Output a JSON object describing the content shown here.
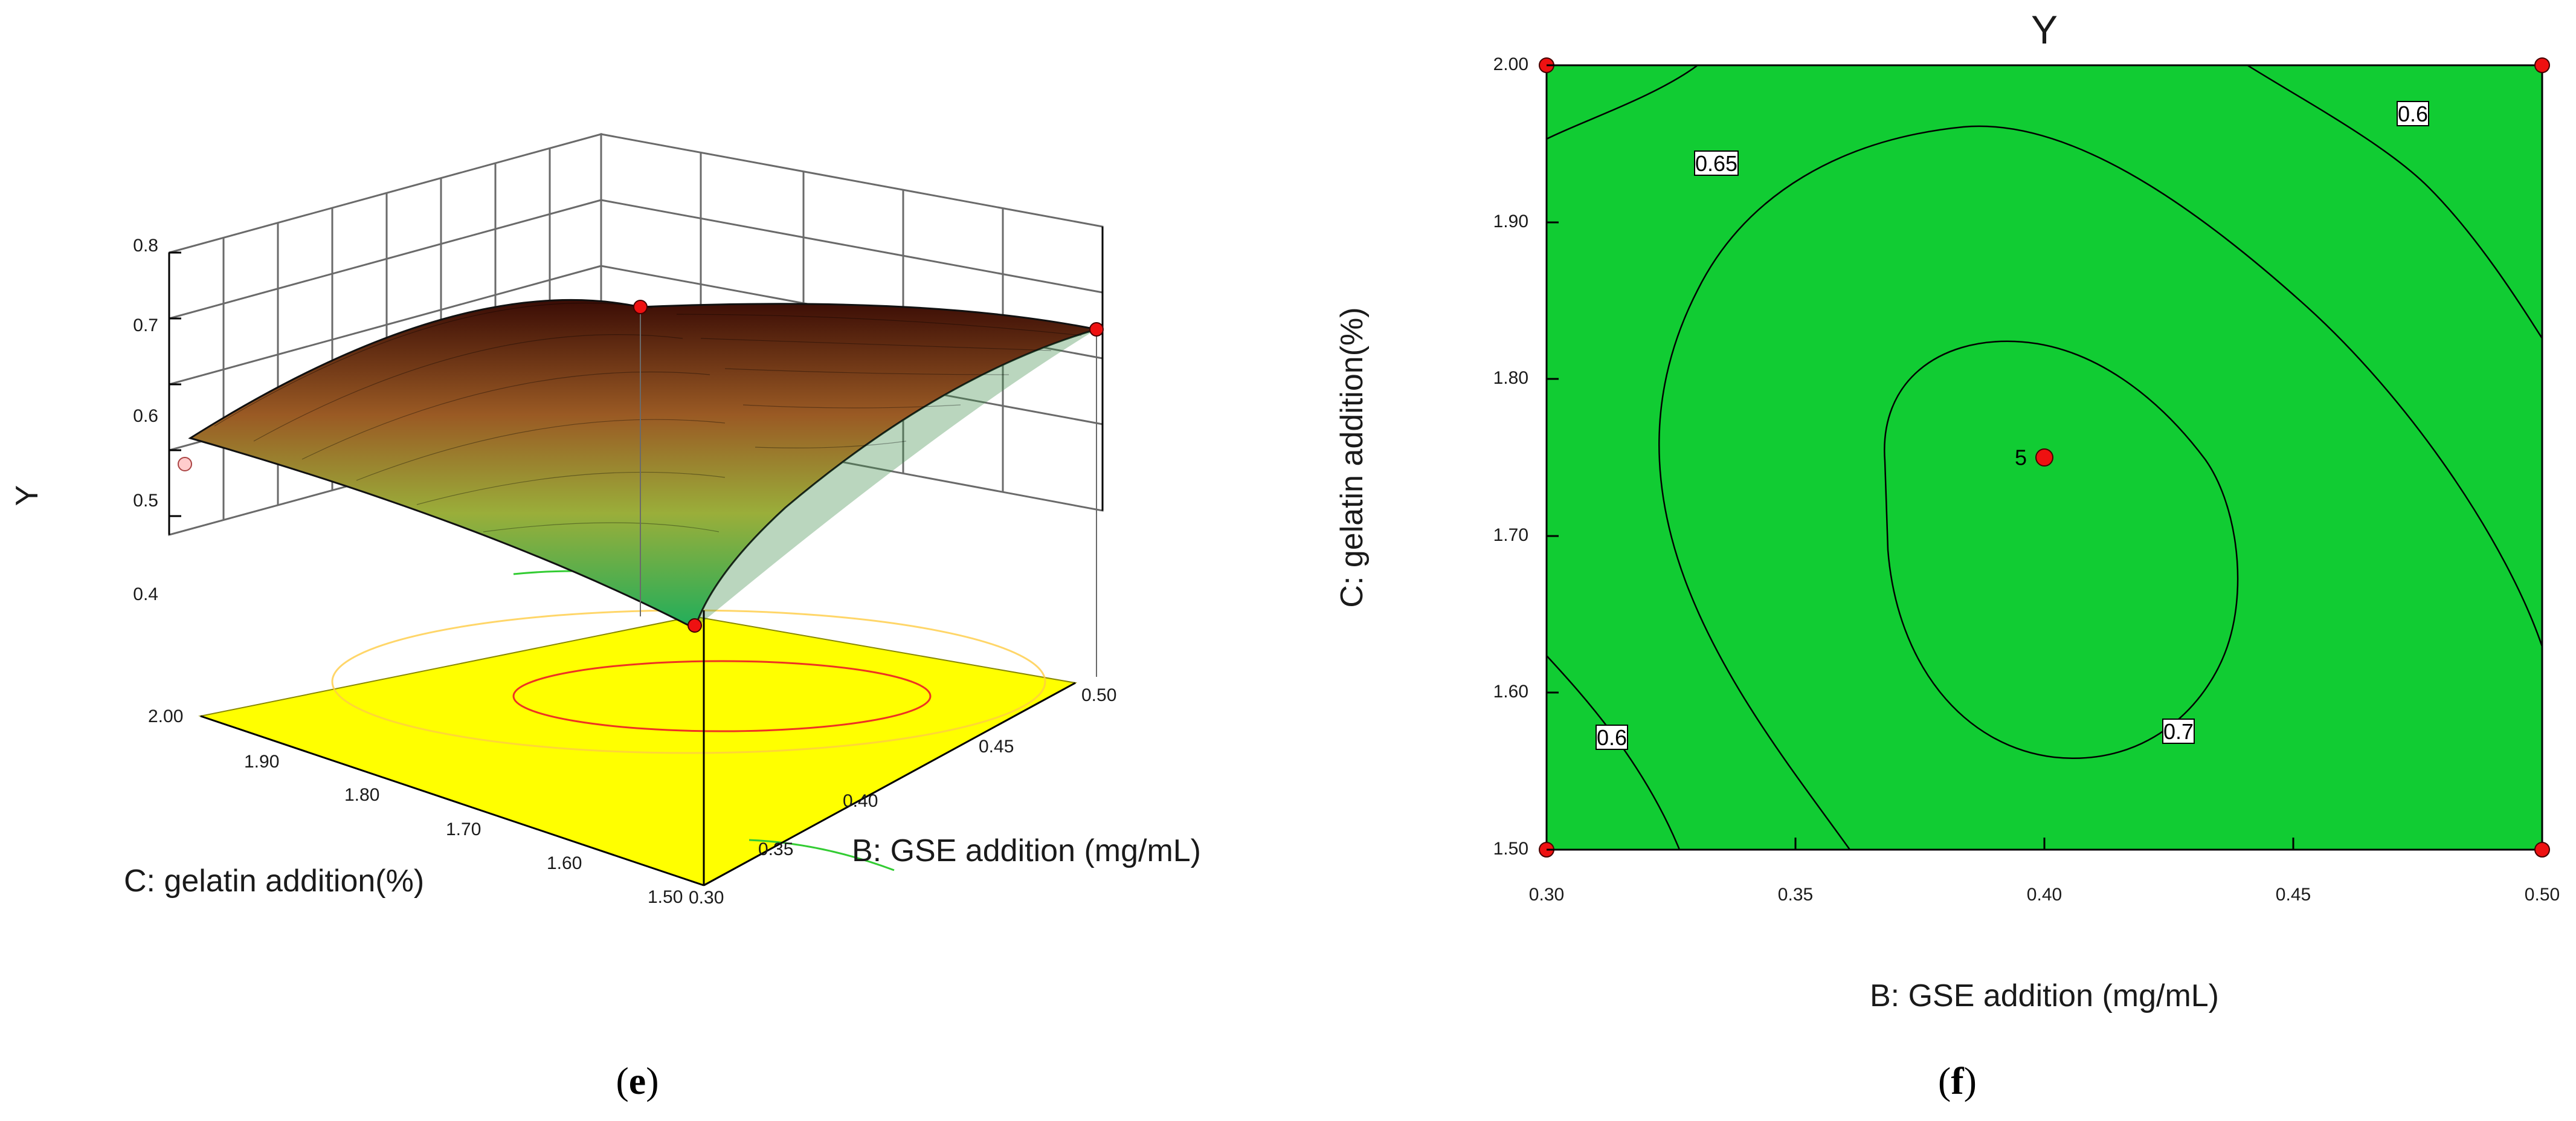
{
  "chart_data": [
    {
      "panel": "e",
      "type": "surface",
      "zlabel": "Y",
      "xlabel": "B: GSE addition (mg/mL)",
      "ylabel": "C: gelatin addition(%)",
      "x_ticks": [
        "0.30",
        "0.35",
        "0.40",
        "0.45",
        "0.50"
      ],
      "y_ticks": [
        "1.50",
        "1.60",
        "1.70",
        "1.80",
        "1.90",
        "2.00"
      ],
      "z_ticks": [
        "0.4",
        "0.5",
        "0.6",
        "0.7",
        "0.8"
      ],
      "xlim": [
        0.3,
        0.5
      ],
      "ylim": [
        1.5,
        2.0
      ],
      "zlim": [
        0.3,
        0.8
      ],
      "design_points": [
        {
          "x": 0.3,
          "y": 2.0,
          "z": 0.57
        },
        {
          "x": 0.5,
          "y": 2.0,
          "z": 0.7
        },
        {
          "x": 0.3,
          "y": 1.5,
          "z": 0.4
        },
        {
          "x": 0.5,
          "y": 1.5,
          "z": 0.63
        }
      ]
    },
    {
      "panel": "f",
      "type": "contour",
      "title": "Y",
      "xlabel": "B: GSE addition (mg/mL)",
      "ylabel": "C: gelatin addition(%)",
      "x_ticks": [
        "0.30",
        "0.35",
        "0.40",
        "0.45",
        "0.50"
      ],
      "y_ticks": [
        "1.50",
        "1.60",
        "1.70",
        "1.80",
        "1.90",
        "2.00"
      ],
      "xlim": [
        0.3,
        0.5
      ],
      "ylim": [
        1.5,
        2.0
      ],
      "contour_labels": [
        "0.6",
        "0.65",
        "0.7",
        "0.6"
      ],
      "center_point": {
        "x": 0.4,
        "y": 1.75,
        "label": "5"
      },
      "design_points": [
        {
          "x": 0.3,
          "y": 2.0
        },
        {
          "x": 0.5,
          "y": 2.0
        },
        {
          "x": 0.3,
          "y": 1.5
        },
        {
          "x": 0.5,
          "y": 1.5
        }
      ]
    }
  ],
  "labels": {
    "panel_e": "e",
    "panel_f": "f"
  },
  "colors": {
    "surface_low": "#22b45a",
    "surface_high": "#8b1a0a",
    "plane": "#ffff00",
    "point": "#ee1111"
  }
}
